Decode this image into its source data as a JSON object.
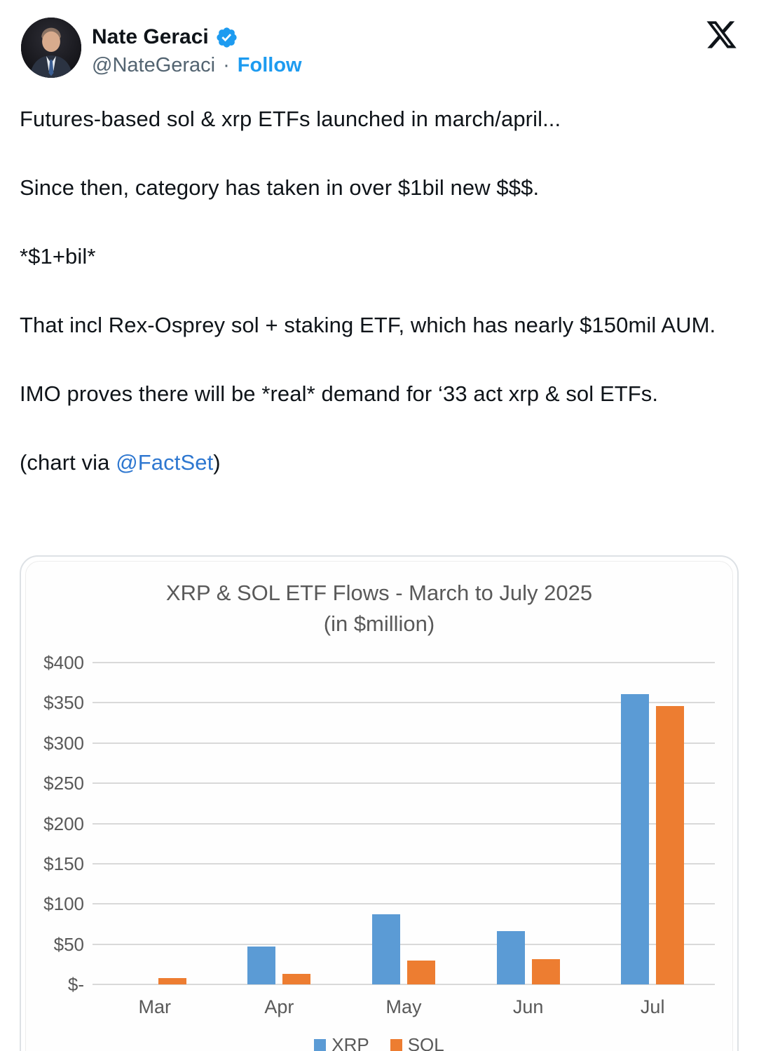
{
  "header": {
    "display_name": "Nate Geraci",
    "handle": "@NateGeraci",
    "separator": "·",
    "follow_label": "Follow"
  },
  "tweet": {
    "paragraphs": [
      "Futures-based sol & xrp ETFs launched in march/april...",
      "Since then, category has taken in over $1bil new $$$.",
      "*$1+bil*",
      "That incl Rex-Osprey sol + staking ETF, which has nearly $150mil AUM.",
      "IMO proves there will be *real* demand for ‘33 act xrp & sol ETFs."
    ],
    "credit": {
      "prefix": "(chart via ",
      "link": "@FactSet",
      "suffix": ")"
    }
  },
  "chart_data": {
    "type": "bar",
    "title": "XRP & SOL ETF Flows - March to July 2025",
    "subtitle": "(in $million)",
    "categories": [
      "Mar",
      "Apr",
      "May",
      "Jun",
      "Jul"
    ],
    "series": [
      {
        "name": "XRP",
        "color": "#5B9BD5",
        "values": [
          0,
          47,
          87,
          66,
          361
        ]
      },
      {
        "name": "SOL",
        "color": "#ED7D31",
        "values": [
          8,
          13,
          30,
          31,
          346
        ]
      }
    ],
    "ylim": [
      0,
      400
    ],
    "ytick_step": 50,
    "ytick_labels": [
      "$-",
      "$50",
      "$100",
      "$150",
      "$200",
      "$250",
      "$300",
      "$350",
      "$400"
    ],
    "grid": true,
    "legend_position": "bottom",
    "axis_text_color": "#595959",
    "gridline_color": "#d9d9d9"
  },
  "colors": {
    "accent_blue": "#1d9bf0",
    "link_blue": "#2e77d0",
    "text_primary": "#0f1419",
    "text_secondary": "#536471"
  }
}
